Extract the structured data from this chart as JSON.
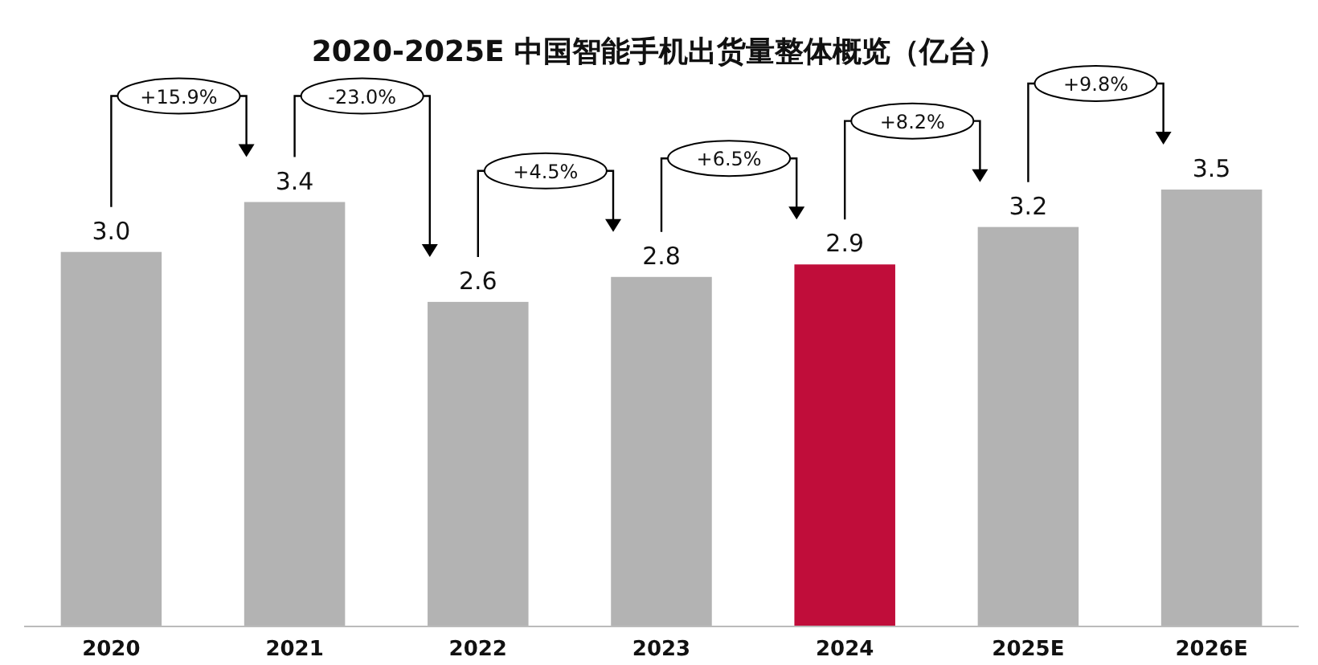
{
  "chart_data": {
    "type": "bar",
    "title": "2020-2025E 中国智能手机出货量整体概览（亿台）",
    "categories": [
      "2020",
      "2021",
      "2022",
      "2023",
      "2024",
      "2025E",
      "2026E"
    ],
    "values": [
      3.0,
      3.4,
      2.6,
      2.8,
      2.9,
      3.2,
      3.5
    ],
    "value_labels": [
      "3.0",
      "3.4",
      "2.6",
      "2.8",
      "2.9",
      "3.2",
      "3.5"
    ],
    "colors": [
      "#b3b3b3",
      "#b3b3b3",
      "#b3b3b3",
      "#b3b3b3",
      "#c00d3a",
      "#b3b3b3",
      "#b3b3b3"
    ],
    "annotations": [
      "+15.9%",
      "-23.0%",
      "+4.5%",
      "+6.5%",
      "+8.2%",
      "+9.8%"
    ]
  }
}
